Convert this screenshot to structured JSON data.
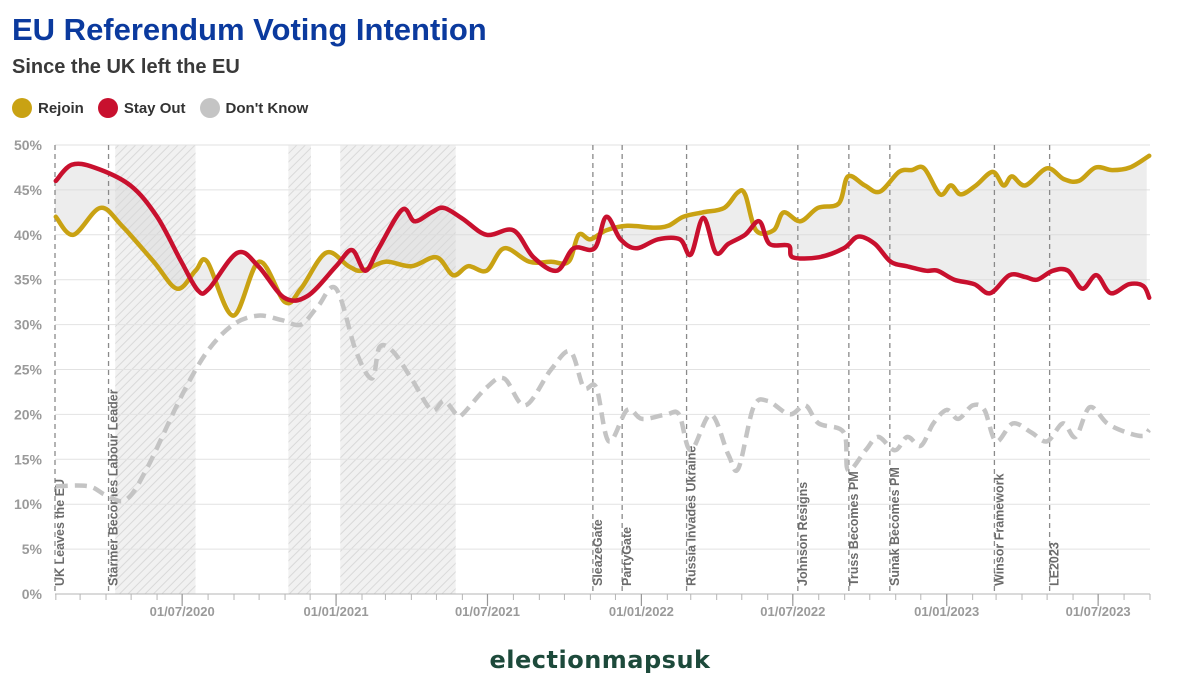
{
  "title": "EU Referendum Voting Intention",
  "subtitle": "Since the UK left the EU",
  "footer": "electionmapsuk",
  "colors": {
    "rejoin": "#c9a213",
    "stay_out": "#c8102e",
    "dont_know": "#c4c4c4",
    "title": "#0b3a9e"
  },
  "chart_data": {
    "type": "line",
    "title": "EU Referendum Voting Intention",
    "subtitle": "Since the UK left the EU",
    "ylim": [
      0,
      50
    ],
    "xlim": [
      "2020-01-31",
      "2023-09-01"
    ],
    "y_ticks": [
      "0%",
      "5%",
      "10%",
      "15%",
      "20%",
      "25%",
      "30%",
      "35%",
      "40%",
      "45%",
      "50%"
    ],
    "x_ticks": [
      {
        "date": "2020-07-01",
        "label": "01/07/2020"
      },
      {
        "date": "2021-01-01",
        "label": "01/01/2021"
      },
      {
        "date": "2021-07-01",
        "label": "01/07/2021"
      },
      {
        "date": "2022-01-01",
        "label": "01/01/2022"
      },
      {
        "date": "2022-07-01",
        "label": "01/07/2022"
      },
      {
        "date": "2023-01-01",
        "label": "01/01/2023"
      },
      {
        "date": "2023-07-01",
        "label": "01/07/2023"
      }
    ],
    "grid": true,
    "legend_position": "top-left",
    "shaded_periods": [
      {
        "start": "2020-04-12",
        "end": "2020-07-17"
      },
      {
        "start": "2020-11-05",
        "end": "2020-12-02"
      },
      {
        "start": "2021-01-06",
        "end": "2021-05-24"
      }
    ],
    "events": [
      {
        "date": "2020-01-31",
        "label": "UK Leaves the EU"
      },
      {
        "date": "2020-04-04",
        "label": "Starmer Becomes Labour Leader"
      },
      {
        "date": "2021-11-04",
        "label": "SleazeGate"
      },
      {
        "date": "2021-12-09",
        "label": "PartyGate"
      },
      {
        "date": "2022-02-24",
        "label": "Russia Invades Ukraine"
      },
      {
        "date": "2022-07-07",
        "label": "Johnson Resigns"
      },
      {
        "date": "2022-09-06",
        "label": "Truss Becomes PM"
      },
      {
        "date": "2022-10-25",
        "label": "Sunak Becomes PM"
      },
      {
        "date": "2023-02-27",
        "label": "Winsor Framework"
      },
      {
        "date": "2023-05-04",
        "label": "LE2023"
      }
    ],
    "series": [
      {
        "name": "Rejoin",
        "color": "#c9a213",
        "points": [
          [
            "2020-02-01",
            42
          ],
          [
            "2020-02-22",
            40
          ],
          [
            "2020-03-25",
            43
          ],
          [
            "2020-04-20",
            41
          ],
          [
            "2020-05-28",
            37
          ],
          [
            "2020-06-25",
            34
          ],
          [
            "2020-07-17",
            36
          ],
          [
            "2020-07-31",
            37
          ],
          [
            "2020-08-31",
            31
          ],
          [
            "2020-10-01",
            37
          ],
          [
            "2020-11-01",
            32.5
          ],
          [
            "2020-11-20",
            34
          ],
          [
            "2020-12-20",
            38
          ],
          [
            "2021-01-16",
            36.5
          ],
          [
            "2021-02-01",
            36
          ],
          [
            "2021-03-01",
            37
          ],
          [
            "2021-04-01",
            36.5
          ],
          [
            "2021-05-01",
            37.5
          ],
          [
            "2021-05-21",
            35.5
          ],
          [
            "2021-06-08",
            36.5
          ],
          [
            "2021-06-30",
            36
          ],
          [
            "2021-07-21",
            38.5
          ],
          [
            "2021-08-20",
            37
          ],
          [
            "2021-09-15",
            37
          ],
          [
            "2021-10-06",
            37
          ],
          [
            "2021-10-18",
            40
          ],
          [
            "2021-11-01",
            39.5
          ],
          [
            "2021-11-20",
            40.5
          ],
          [
            "2021-12-15",
            41
          ],
          [
            "2022-01-15",
            40.8
          ],
          [
            "2022-02-02",
            41
          ],
          [
            "2022-02-20",
            42
          ],
          [
            "2022-03-15",
            42.5
          ],
          [
            "2022-04-10",
            43
          ],
          [
            "2022-04-26",
            44.7
          ],
          [
            "2022-05-05",
            44.5
          ],
          [
            "2022-05-18",
            40.5
          ],
          [
            "2022-06-08",
            40.5
          ],
          [
            "2022-06-20",
            42.5
          ],
          [
            "2022-07-10",
            41.5
          ],
          [
            "2022-07-31",
            43
          ],
          [
            "2022-08-25",
            43.5
          ],
          [
            "2022-09-05",
            46.5
          ],
          [
            "2022-09-25",
            45.5
          ],
          [
            "2022-10-13",
            44.8
          ],
          [
            "2022-11-05",
            47
          ],
          [
            "2022-11-20",
            47.2
          ],
          [
            "2022-12-05",
            47.4
          ],
          [
            "2022-12-24",
            44.5
          ],
          [
            "2023-01-06",
            45.5
          ],
          [
            "2023-01-18",
            44.5
          ],
          [
            "2023-02-05",
            45.5
          ],
          [
            "2023-02-25",
            47
          ],
          [
            "2023-03-10",
            45.5
          ],
          [
            "2023-03-20",
            46.5
          ],
          [
            "2023-04-05",
            45.5
          ],
          [
            "2023-05-01",
            47.4
          ],
          [
            "2023-05-21",
            46.2
          ],
          [
            "2023-06-08",
            46
          ],
          [
            "2023-06-28",
            47.5
          ],
          [
            "2023-07-18",
            47.2
          ],
          [
            "2023-08-08",
            47.5
          ],
          [
            "2023-08-31",
            48.8
          ]
        ]
      },
      {
        "name": "Stay Out",
        "color": "#c8102e",
        "points": [
          [
            "2020-02-01",
            46
          ],
          [
            "2020-02-20",
            47.8
          ],
          [
            "2020-03-18",
            47.5
          ],
          [
            "2020-04-30",
            45.5
          ],
          [
            "2020-06-01",
            42
          ],
          [
            "2020-06-30",
            37
          ],
          [
            "2020-07-20",
            33.8
          ],
          [
            "2020-08-02",
            34
          ],
          [
            "2020-09-05",
            38
          ],
          [
            "2020-09-30",
            36.5
          ],
          [
            "2020-10-31",
            33
          ],
          [
            "2020-11-28",
            33.2
          ],
          [
            "2021-01-01",
            36.5
          ],
          [
            "2021-01-20",
            38.3
          ],
          [
            "2021-02-05",
            36
          ],
          [
            "2021-02-21",
            38.5
          ],
          [
            "2021-03-21",
            42.8
          ],
          [
            "2021-04-05",
            41.5
          ],
          [
            "2021-04-25",
            42.5
          ],
          [
            "2021-05-10",
            43
          ],
          [
            "2021-06-01",
            41.8
          ],
          [
            "2021-06-30",
            40
          ],
          [
            "2021-08-01",
            40.5
          ],
          [
            "2021-08-25",
            37.5
          ],
          [
            "2021-09-22",
            36
          ],
          [
            "2021-10-12",
            38.5
          ],
          [
            "2021-11-06",
            38.5
          ],
          [
            "2021-11-20",
            42
          ],
          [
            "2021-12-07",
            39.5
          ],
          [
            "2021-12-26",
            38.5
          ],
          [
            "2022-01-21",
            39.5
          ],
          [
            "2022-02-16",
            39.5
          ],
          [
            "2022-03-01",
            37.8
          ],
          [
            "2022-03-16",
            41.9
          ],
          [
            "2022-03-31",
            38
          ],
          [
            "2022-04-15",
            39
          ],
          [
            "2022-05-05",
            40
          ],
          [
            "2022-05-22",
            41.5
          ],
          [
            "2022-06-03",
            39
          ],
          [
            "2022-06-26",
            38.8
          ],
          [
            "2022-07-01",
            37.5
          ],
          [
            "2022-08-01",
            37.5
          ],
          [
            "2022-08-31",
            38.5
          ],
          [
            "2022-09-17",
            39.8
          ],
          [
            "2022-10-07",
            39
          ],
          [
            "2022-10-26",
            37
          ],
          [
            "2022-11-14",
            36.5
          ],
          [
            "2022-12-07",
            36
          ],
          [
            "2022-12-21",
            36
          ],
          [
            "2023-01-10",
            35
          ],
          [
            "2023-02-03",
            34.5
          ],
          [
            "2023-02-22",
            33.5
          ],
          [
            "2023-03-17",
            35.5
          ],
          [
            "2023-04-05",
            35.3
          ],
          [
            "2023-04-19",
            35
          ],
          [
            "2023-05-08",
            36
          ],
          [
            "2023-05-26",
            36
          ],
          [
            "2023-06-12",
            34
          ],
          [
            "2023-06-29",
            35.5
          ],
          [
            "2023-07-16",
            33.5
          ],
          [
            "2023-08-07",
            34.5
          ],
          [
            "2023-08-24",
            34.3
          ],
          [
            "2023-08-31",
            33
          ]
        ]
      },
      {
        "name": "Don't Know",
        "color": "#c4c4c4",
        "points": [
          [
            "2020-02-01",
            12
          ],
          [
            "2020-03-11",
            12
          ],
          [
            "2020-04-01",
            11
          ],
          [
            "2020-04-25",
            10.5
          ],
          [
            "2020-05-20",
            14
          ],
          [
            "2020-06-30",
            22
          ],
          [
            "2020-07-31",
            27
          ],
          [
            "2020-08-31",
            30
          ],
          [
            "2020-09-30",
            31
          ],
          [
            "2020-10-28",
            30.5
          ],
          [
            "2020-11-20",
            30
          ],
          [
            "2020-12-10",
            32
          ],
          [
            "2021-01-01",
            34
          ],
          [
            "2021-01-25",
            27
          ],
          [
            "2021-02-13",
            24
          ],
          [
            "2021-02-22",
            27.5
          ],
          [
            "2021-03-10",
            27
          ],
          [
            "2021-04-01",
            24
          ],
          [
            "2021-04-25",
            20.5
          ],
          [
            "2021-05-10",
            21.5
          ],
          [
            "2021-05-25",
            20
          ],
          [
            "2021-06-01",
            20
          ],
          [
            "2021-06-30",
            23
          ],
          [
            "2021-07-21",
            24
          ],
          [
            "2021-08-15",
            21
          ],
          [
            "2021-09-15",
            25
          ],
          [
            "2021-10-08",
            27
          ],
          [
            "2021-10-24",
            23
          ],
          [
            "2021-11-08",
            23
          ],
          [
            "2021-11-23",
            17
          ],
          [
            "2021-12-15",
            20.5
          ],
          [
            "2022-01-02",
            19.5
          ],
          [
            "2022-01-31",
            20
          ],
          [
            "2022-02-15",
            20
          ],
          [
            "2022-03-01",
            16
          ],
          [
            "2022-03-25",
            20
          ],
          [
            "2022-04-15",
            15.5
          ],
          [
            "2022-04-27",
            14
          ],
          [
            "2022-05-15",
            20.8
          ],
          [
            "2022-06-01",
            21.5
          ],
          [
            "2022-06-27",
            20
          ],
          [
            "2022-07-16",
            21
          ],
          [
            "2022-08-01",
            19
          ],
          [
            "2022-08-31",
            18
          ],
          [
            "2022-09-05",
            13.8
          ],
          [
            "2022-09-26",
            16
          ],
          [
            "2022-10-11",
            17.5
          ],
          [
            "2022-10-31",
            16
          ],
          [
            "2022-11-15",
            17.5
          ],
          [
            "2022-12-01",
            16.5
          ],
          [
            "2022-12-16",
            19
          ],
          [
            "2023-01-01",
            20.5
          ],
          [
            "2023-01-15",
            19.5
          ],
          [
            "2023-02-01",
            21
          ],
          [
            "2023-02-15",
            20.5
          ],
          [
            "2023-03-01",
            17
          ],
          [
            "2023-03-21",
            19
          ],
          [
            "2023-04-12",
            18
          ],
          [
            "2023-05-01",
            17
          ],
          [
            "2023-05-20",
            19
          ],
          [
            "2023-06-04",
            17.5
          ],
          [
            "2023-06-21",
            20.8
          ],
          [
            "2023-07-12",
            19
          ],
          [
            "2023-08-04",
            18
          ],
          [
            "2023-08-24",
            17.6
          ],
          [
            "2023-08-31",
            18.3
          ]
        ]
      }
    ]
  }
}
